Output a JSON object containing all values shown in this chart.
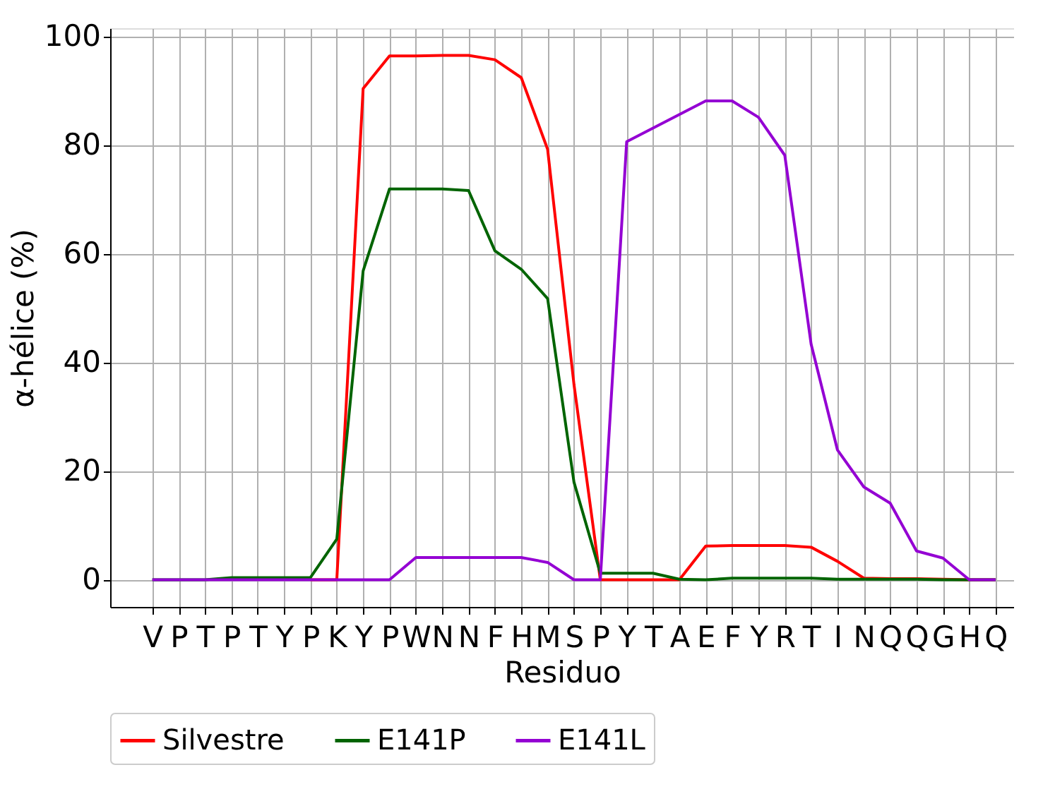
{
  "chart_data": {
    "type": "line",
    "xlabel": "Residuo",
    "ylabel": "α-hélice (%)",
    "categories": [
      "V",
      "P",
      "T",
      "P",
      "T",
      "Y",
      "P",
      "K",
      "Y",
      "P",
      "W",
      "N",
      "N",
      "F",
      "H",
      "M",
      "S",
      "P",
      "Y",
      "T",
      "A",
      "E",
      "F",
      "Y",
      "R",
      "T",
      "I",
      "N",
      "Q",
      "Q",
      "G",
      "H",
      "Q"
    ],
    "ylim": [
      -5,
      101.6
    ],
    "yticks": [
      0,
      20,
      40,
      60,
      80,
      100
    ],
    "grid": true,
    "legend": "bottom",
    "line_style": "solid",
    "marker": "none",
    "series": [
      {
        "name": "Silvestre",
        "color": "#ff0000",
        "values": [
          null,
          null,
          null,
          null,
          null,
          null,
          0,
          0,
          90.5,
          96.5,
          96.5,
          96.6,
          96.6,
          95.8,
          92.5,
          79.3,
          36,
          0,
          0,
          0,
          0,
          6.2,
          6.3,
          6.3,
          6.3,
          6.0,
          3.4,
          0.3,
          0.2,
          0.2,
          0.1,
          0,
          0
        ]
      },
      {
        "name": "E141P",
        "color": "#006400",
        "values": [
          0,
          0,
          0,
          0.4,
          0.4,
          0.4,
          0.4,
          7.5,
          56.9,
          72.0,
          72.0,
          72.0,
          71.7,
          60.6,
          57.2,
          51.8,
          18.0,
          1.2,
          1.2,
          1.2,
          0.1,
          0,
          0.3,
          0.3,
          0.3,
          0.3,
          0.1,
          0.1,
          0.1,
          0.1,
          0,
          0,
          0
        ]
      },
      {
        "name": "E141L",
        "color": "#9400d3",
        "values": [
          0,
          0,
          0,
          0,
          0,
          0,
          0,
          0,
          0,
          0,
          4.1,
          4.1,
          4.1,
          4.1,
          4.1,
          3.2,
          0,
          0,
          80.7,
          83.2,
          85.7,
          88.2,
          88.2,
          85.2,
          78.2,
          43.4,
          23.9,
          17.1,
          14.1,
          5.3,
          4.0,
          0,
          0
        ]
      }
    ]
  }
}
